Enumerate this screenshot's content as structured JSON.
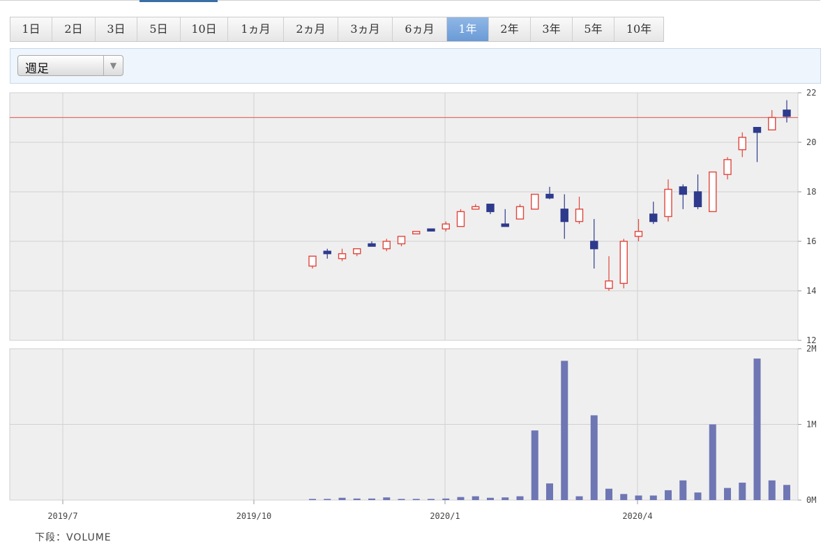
{
  "period_tabs": [
    "1日",
    "2日",
    "3日",
    "5日",
    "10日",
    "1ヵ月",
    "2ヵ月",
    "3ヵ月",
    "6ヵ月",
    "1年",
    "2年",
    "3年",
    "5年",
    "10年"
  ],
  "active_period": "1年",
  "interval_select": {
    "value": "週足",
    "arrow": "▼"
  },
  "colors": {
    "up": "#e0463c",
    "down": "#2e3a8c",
    "volume": "#6f76b4",
    "reference_line": "#e66a6a",
    "grid": "#d2d2d2",
    "panel_bg": "#efefef"
  },
  "footer": {
    "label": "下段：VOLUME"
  },
  "chart_data": [
    {
      "type": "candlestick",
      "x_labels": [
        "2019/7",
        "2019/10",
        "2020/1",
        "2020/4"
      ],
      "ylim": [
        12,
        22
      ],
      "yticks": [
        "12",
        "14",
        "16",
        "18",
        "20",
        "22"
      ],
      "reference_line": 21.0,
      "weeks": 33,
      "candles": [
        {
          "o": 15.0,
          "h": 15.4,
          "l": 14.9,
          "c": 15.4
        },
        {
          "o": 15.6,
          "h": 15.7,
          "l": 15.3,
          "c": 15.5
        },
        {
          "o": 15.3,
          "h": 15.7,
          "l": 15.2,
          "c": 15.5
        },
        {
          "o": 15.5,
          "h": 15.7,
          "l": 15.4,
          "c": 15.7
        },
        {
          "o": 15.9,
          "h": 16.0,
          "l": 15.8,
          "c": 15.8
        },
        {
          "o": 15.7,
          "h": 16.1,
          "l": 15.6,
          "c": 16.0
        },
        {
          "o": 15.9,
          "h": 16.2,
          "l": 15.8,
          "c": 16.2
        },
        {
          "o": 16.3,
          "h": 16.4,
          "l": 16.3,
          "c": 16.4
        },
        {
          "o": 16.5,
          "h": 16.5,
          "l": 16.4,
          "c": 16.45
        },
        {
          "o": 16.5,
          "h": 16.8,
          "l": 16.4,
          "c": 16.7
        },
        {
          "o": 16.6,
          "h": 17.3,
          "l": 16.6,
          "c": 17.2
        },
        {
          "o": 17.3,
          "h": 17.5,
          "l": 17.3,
          "c": 17.4
        },
        {
          "o": 17.5,
          "h": 17.5,
          "l": 17.1,
          "c": 17.2
        },
        {
          "o": 16.7,
          "h": 17.3,
          "l": 16.6,
          "c": 16.6
        },
        {
          "o": 16.9,
          "h": 17.5,
          "l": 16.9,
          "c": 17.4
        },
        {
          "o": 17.3,
          "h": 17.9,
          "l": 17.3,
          "c": 17.9
        },
        {
          "o": 17.9,
          "h": 18.2,
          "l": 17.7,
          "c": 17.75
        },
        {
          "o": 17.3,
          "h": 17.9,
          "l": 16.1,
          "c": 16.8
        },
        {
          "o": 16.8,
          "h": 17.8,
          "l": 16.7,
          "c": 17.3
        },
        {
          "o": 16.0,
          "h": 16.9,
          "l": 14.9,
          "c": 15.7
        },
        {
          "o": 14.1,
          "h": 15.4,
          "l": 14.0,
          "c": 14.4
        },
        {
          "o": 14.3,
          "h": 16.1,
          "l": 14.1,
          "c": 16.0
        },
        {
          "o": 16.2,
          "h": 16.9,
          "l": 16.0,
          "c": 16.4
        },
        {
          "o": 17.1,
          "h": 17.6,
          "l": 16.7,
          "c": 16.8
        },
        {
          "o": 17.0,
          "h": 18.5,
          "l": 16.8,
          "c": 18.1
        },
        {
          "o": 18.2,
          "h": 18.3,
          "l": 17.3,
          "c": 17.9
        },
        {
          "o": 18.0,
          "h": 18.7,
          "l": 17.3,
          "c": 17.4
        },
        {
          "o": 17.2,
          "h": 18.8,
          "l": 17.2,
          "c": 18.8
        },
        {
          "o": 18.7,
          "h": 19.4,
          "l": 18.5,
          "c": 19.3
        },
        {
          "o": 19.7,
          "h": 20.4,
          "l": 19.4,
          "c": 20.2
        },
        {
          "o": 20.6,
          "h": 20.6,
          "l": 19.2,
          "c": 20.4
        },
        {
          "o": 20.5,
          "h": 21.3,
          "l": 20.5,
          "c": 21.0
        },
        {
          "o": 21.3,
          "h": 21.7,
          "l": 20.8,
          "c": 21.05
        }
      ]
    },
    {
      "type": "bar",
      "series_label": "VOLUME",
      "ylim": [
        0,
        2000000
      ],
      "yticks": [
        "0M",
        "1M",
        "2M"
      ],
      "values": [
        15000,
        15000,
        30000,
        20000,
        20000,
        35000,
        15000,
        15000,
        15000,
        20000,
        40000,
        50000,
        30000,
        35000,
        50000,
        920000,
        220000,
        1840000,
        50000,
        1120000,
        150000,
        80000,
        60000,
        60000,
        130000,
        260000,
        100000,
        1000000,
        160000,
        230000,
        1870000,
        260000,
        200000
      ]
    }
  ]
}
